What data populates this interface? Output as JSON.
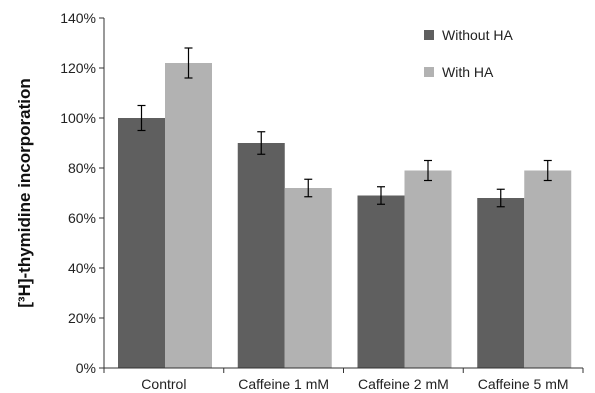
{
  "chart_data": {
    "type": "bar",
    "title": "",
    "xlabel": "",
    "ylabel": "[³H]-thymidine incorporation",
    "categories": [
      "Control",
      "Caffeine 1 mM",
      "Caffeine 2 mM",
      "Caffeine 5 mM"
    ],
    "series": [
      {
        "name": "Without HA",
        "color": "#5f5f5f",
        "values": [
          100,
          90,
          69,
          68
        ],
        "errors": [
          5,
          4.5,
          3.5,
          3.5
        ]
      },
      {
        "name": "With HA",
        "color": "#b2b2b2",
        "values": [
          122,
          72,
          79,
          79
        ],
        "errors": [
          6,
          3.5,
          4,
          4
        ]
      }
    ],
    "ylim": [
      0,
      140
    ],
    "yticks": [
      0,
      20,
      40,
      60,
      80,
      100,
      120,
      140
    ],
    "ytick_labels": [
      "0%",
      "20%",
      "40%",
      "60%",
      "80%",
      "100%",
      "120%",
      "140%"
    ],
    "grid": false,
    "legend_position": "top-right"
  }
}
